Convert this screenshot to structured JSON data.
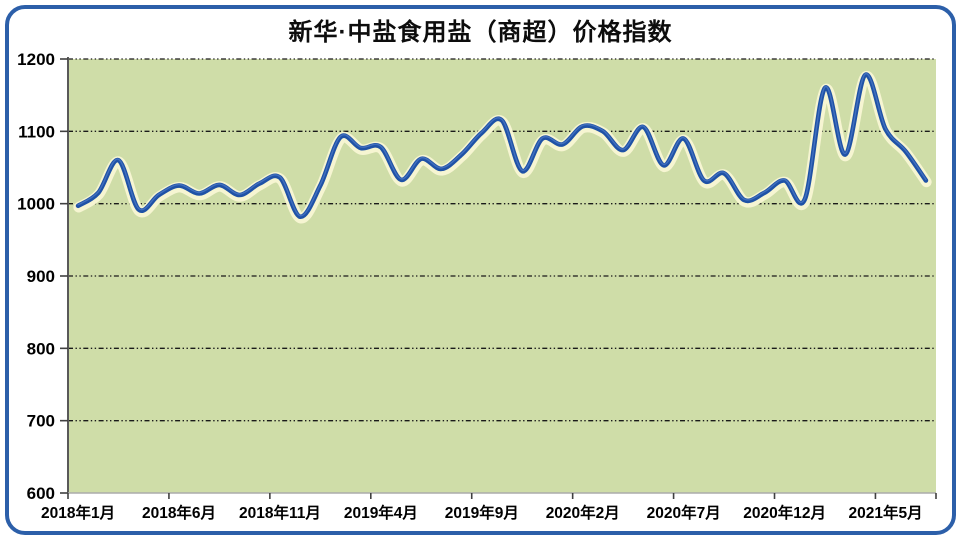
{
  "chart_data": {
    "type": "line",
    "title": "新华·中盐食用盐（商超）价格指数",
    "series_name": "价格指数",
    "smooth": true,
    "grid": "horizontal-dash-dot",
    "legend": "none",
    "ylim": [
      600,
      1200
    ],
    "y_ticks": [
      600,
      700,
      800,
      900,
      1000,
      1100,
      1200
    ],
    "x_tick_labels": [
      "2018年1月",
      "2018年6月",
      "2018年11月",
      "2019年4月",
      "2019年9月",
      "2020年2月",
      "2020年7月",
      "2020年12月",
      "2021年5月"
    ],
    "x_start": "2018年1月",
    "x_end": "2021年7月",
    "x_label_step_months": 5,
    "n_points": 43,
    "values": [
      997,
      1015,
      1060,
      992,
      1012,
      1025,
      1014,
      1026,
      1012,
      1028,
      1036,
      982,
      1025,
      1092,
      1077,
      1078,
      1033,
      1062,
      1048,
      1068,
      1098,
      1115,
      1045,
      1090,
      1082,
      1107,
      1100,
      1074,
      1106,
      1053,
      1090,
      1032,
      1042,
      1005,
      1015,
      1032,
      1006,
      1160,
      1068,
      1178,
      1103,
      1072,
      1032
    ],
    "colors": {
      "line": "#1f52a6",
      "line_highlight": "#4a77c4",
      "line_halo": "#f6f5d2",
      "plot_background": "#cfdda8",
      "gridline": "#1a1a1a",
      "y_axis": "#595959",
      "x_axis": "#ababab",
      "tick": "#404040",
      "label_text": "#000000",
      "frame_border": "#2c5fa9",
      "page_background": "#ffffff"
    }
  }
}
